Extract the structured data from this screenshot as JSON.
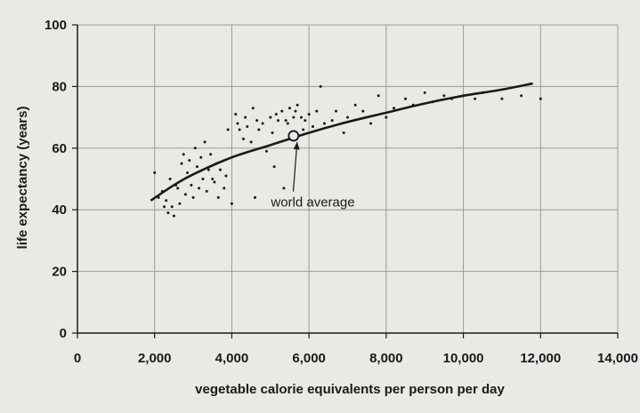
{
  "chart_data": {
    "type": "scatter",
    "title": "",
    "xlabel": "vegetable calorie equivalents per person per day",
    "ylabel": "life expectancy (years)",
    "xlim": [
      0,
      14000
    ],
    "ylim": [
      0,
      100
    ],
    "x_ticks": [
      0,
      2000,
      4000,
      6000,
      8000,
      10000,
      12000,
      14000
    ],
    "x_tick_labels": [
      "0",
      "2,000",
      "4,000",
      "6,000",
      "8,000",
      "10,000",
      "12,000",
      "14,000"
    ],
    "y_ticks": [
      0,
      20,
      40,
      60,
      80,
      100
    ],
    "y_tick_labels": [
      "0",
      "20",
      "40",
      "60",
      "80",
      "100"
    ],
    "grid": true,
    "colors": {
      "marks": "#1a1a1a",
      "grid": "#9a9a9a",
      "background": "#e9e9e6"
    },
    "points": [
      [
        2000,
        52
      ],
      [
        2100,
        44
      ],
      [
        2200,
        46
      ],
      [
        2250,
        41
      ],
      [
        2300,
        43
      ],
      [
        2350,
        39
      ],
      [
        2400,
        50
      ],
      [
        2450,
        41
      ],
      [
        2500,
        38
      ],
      [
        2550,
        48
      ],
      [
        2600,
        47
      ],
      [
        2650,
        42
      ],
      [
        2700,
        55
      ],
      [
        2750,
        58
      ],
      [
        2800,
        45
      ],
      [
        2850,
        52
      ],
      [
        2900,
        56
      ],
      [
        2950,
        48
      ],
      [
        3000,
        44
      ],
      [
        3050,
        60
      ],
      [
        3100,
        54
      ],
      [
        3150,
        47
      ],
      [
        3200,
        57
      ],
      [
        3250,
        50
      ],
      [
        3300,
        62
      ],
      [
        3350,
        46
      ],
      [
        3400,
        53
      ],
      [
        3450,
        58
      ],
      [
        3500,
        50
      ],
      [
        3550,
        49
      ],
      [
        3600,
        55
      ],
      [
        3650,
        44
      ],
      [
        3700,
        53
      ],
      [
        3800,
        47
      ],
      [
        3850,
        51
      ],
      [
        3900,
        66
      ],
      [
        4000,
        42
      ],
      [
        4100,
        71
      ],
      [
        4150,
        68
      ],
      [
        4200,
        66
      ],
      [
        4300,
        63
      ],
      [
        4350,
        70
      ],
      [
        4400,
        67
      ],
      [
        4500,
        62
      ],
      [
        4550,
        73
      ],
      [
        4600,
        44
      ],
      [
        4650,
        69
      ],
      [
        4700,
        66
      ],
      [
        4800,
        68
      ],
      [
        4900,
        59
      ],
      [
        5000,
        70
      ],
      [
        5050,
        65
      ],
      [
        5100,
        54
      ],
      [
        5150,
        71
      ],
      [
        5200,
        69
      ],
      [
        5300,
        72
      ],
      [
        5350,
        47
      ],
      [
        5400,
        69
      ],
      [
        5450,
        68
      ],
      [
        5500,
        73
      ],
      [
        5600,
        70
      ],
      [
        5650,
        72
      ],
      [
        5700,
        74
      ],
      [
        5800,
        70
      ],
      [
        5850,
        66
      ],
      [
        5900,
        69
      ],
      [
        6000,
        71
      ],
      [
        6100,
        67
      ],
      [
        6200,
        72
      ],
      [
        6300,
        80
      ],
      [
        6400,
        68
      ],
      [
        6600,
        69
      ],
      [
        6700,
        72
      ],
      [
        6900,
        65
      ],
      [
        7000,
        70
      ],
      [
        7200,
        74
      ],
      [
        7400,
        72
      ],
      [
        7600,
        68
      ],
      [
        7800,
        77
      ],
      [
        8000,
        70
      ],
      [
        8200,
        73
      ],
      [
        8500,
        76
      ],
      [
        8700,
        74
      ],
      [
        9000,
        78
      ],
      [
        9200,
        75
      ],
      [
        9500,
        77
      ],
      [
        9700,
        76
      ],
      [
        10000,
        77
      ],
      [
        10300,
        76
      ],
      [
        10500,
        78
      ],
      [
        11000,
        76
      ],
      [
        11500,
        77
      ],
      [
        12000,
        76
      ]
    ],
    "trend_curve": [
      [
        1900,
        43
      ],
      [
        2500,
        48
      ],
      [
        3000,
        51.5
      ],
      [
        4000,
        57
      ],
      [
        5000,
        61
      ],
      [
        6000,
        65
      ],
      [
        7000,
        68.5
      ],
      [
        8000,
        71.5
      ],
      [
        9000,
        74.5
      ],
      [
        10000,
        77
      ],
      [
        11000,
        79
      ],
      [
        11800,
        81
      ]
    ],
    "world_average": {
      "x": 5600,
      "y": 64
    },
    "annotations": [
      {
        "text": "world average",
        "x": 6100,
        "y": 41
      }
    ]
  }
}
